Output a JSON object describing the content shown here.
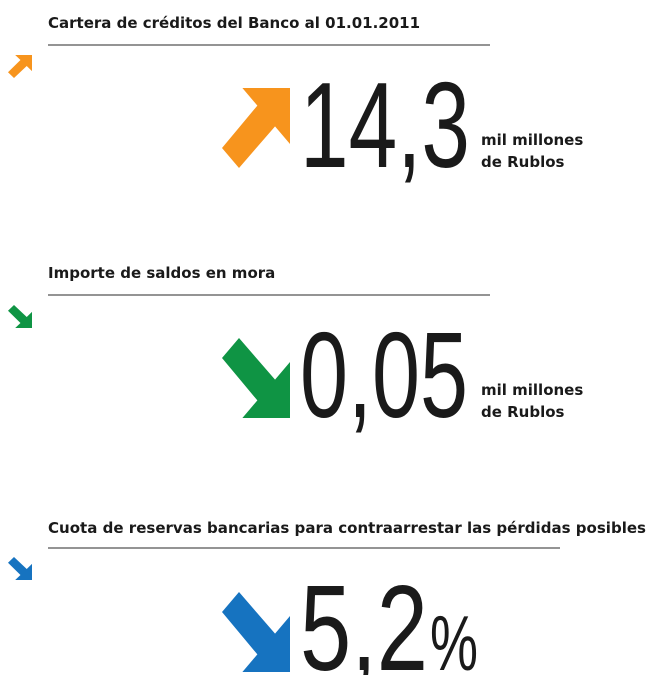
{
  "sections": [
    {
      "title": "Cartera de créditos del Banco al 01.01.2011",
      "value": "14,3",
      "unit_lines": [
        "mil millones",
        "de Rublos"
      ],
      "direction": "up",
      "color": "#f7941d"
    },
    {
      "title": "Importe de saldos en mora",
      "value": "0,05",
      "unit_lines": [
        "mil millones",
        "de Rublos"
      ],
      "direction": "down",
      "color": "#0f9444"
    },
    {
      "title": "Cuota de reservas bancarias para contraarrestar las pérdidas posibles",
      "value": "5,2",
      "suffix": "%",
      "direction": "down",
      "color": "#1673c0"
    }
  ]
}
